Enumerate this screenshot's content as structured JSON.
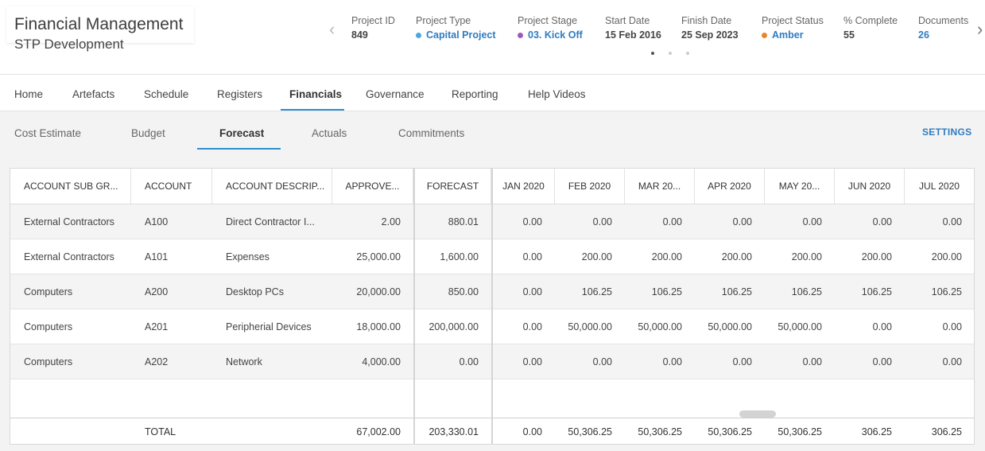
{
  "header": {
    "app_title": "Financial Management",
    "project_name": "STP Development",
    "prev_arrow": "‹",
    "next_arrow": "›",
    "meta": {
      "project_id": {
        "label": "Project ID",
        "value": "849"
      },
      "project_type": {
        "label": "Project Type",
        "value": "Capital Project",
        "color": "#4aa8e0"
      },
      "project_stage": {
        "label": "Project Stage",
        "value": "03. Kick Off",
        "color": "#9b59c4"
      },
      "start_date": {
        "label": "Start Date",
        "value": "15 Feb 2016"
      },
      "finish_date": {
        "label": "Finish Date",
        "value": "25 Sep 2023"
      },
      "project_status": {
        "label": "Project Status",
        "value": "Amber",
        "color": "#e6862c"
      },
      "percent_complete": {
        "label": "% Complete",
        "value": "55"
      },
      "documents": {
        "label": "Documents",
        "value": "26"
      }
    }
  },
  "nav": {
    "tabs": [
      "Home",
      "Artefacts",
      "Schedule",
      "Registers",
      "Financials",
      "Governance",
      "Reporting",
      "Help Videos"
    ],
    "active": "Financials"
  },
  "subnav": {
    "tabs": [
      "Cost Estimate",
      "Budget",
      "Forecast",
      "Actuals",
      "Commitments"
    ],
    "active": "Forecast",
    "settings": "SETTINGS"
  },
  "grid": {
    "columns": [
      "ACCOUNT SUB GR...",
      "ACCOUNT",
      "ACCOUNT DESCRIP...",
      "APPROVE...",
      "FORECAST",
      "JAN 2020",
      "FEB 2020",
      "MAR 20...",
      "APR 2020",
      "MAY 20...",
      "JUN 2020",
      "JUL 2020"
    ],
    "rows": [
      [
        "External Contractors",
        "A100",
        "Direct Contractor I...",
        "2.00",
        "880.01",
        "0.00",
        "0.00",
        "0.00",
        "0.00",
        "0.00",
        "0.00",
        "0.00"
      ],
      [
        "External Contractors",
        "A101",
        "Expenses",
        "25,000.00",
        "1,600.00",
        "0.00",
        "200.00",
        "200.00",
        "200.00",
        "200.00",
        "200.00",
        "200.00"
      ],
      [
        "Computers",
        "A200",
        "Desktop PCs",
        "20,000.00",
        "850.00",
        "0.00",
        "106.25",
        "106.25",
        "106.25",
        "106.25",
        "106.25",
        "106.25"
      ],
      [
        "Computers",
        "A201",
        "Peripherial Devices",
        "18,000.00",
        "200,000.00",
        "0.00",
        "50,000.00",
        "50,000.00",
        "50,000.00",
        "50,000.00",
        "0.00",
        "0.00"
      ],
      [
        "Computers",
        "A202",
        "Network",
        "4,000.00",
        "0.00",
        "0.00",
        "0.00",
        "0.00",
        "0.00",
        "0.00",
        "0.00",
        "0.00"
      ]
    ],
    "totals": [
      "",
      "TOTAL",
      "",
      "67,002.00",
      "203,330.01",
      "0.00",
      "50,306.25",
      "50,306.25",
      "50,306.25",
      "50,306.25",
      "306.25",
      "306.25"
    ]
  }
}
